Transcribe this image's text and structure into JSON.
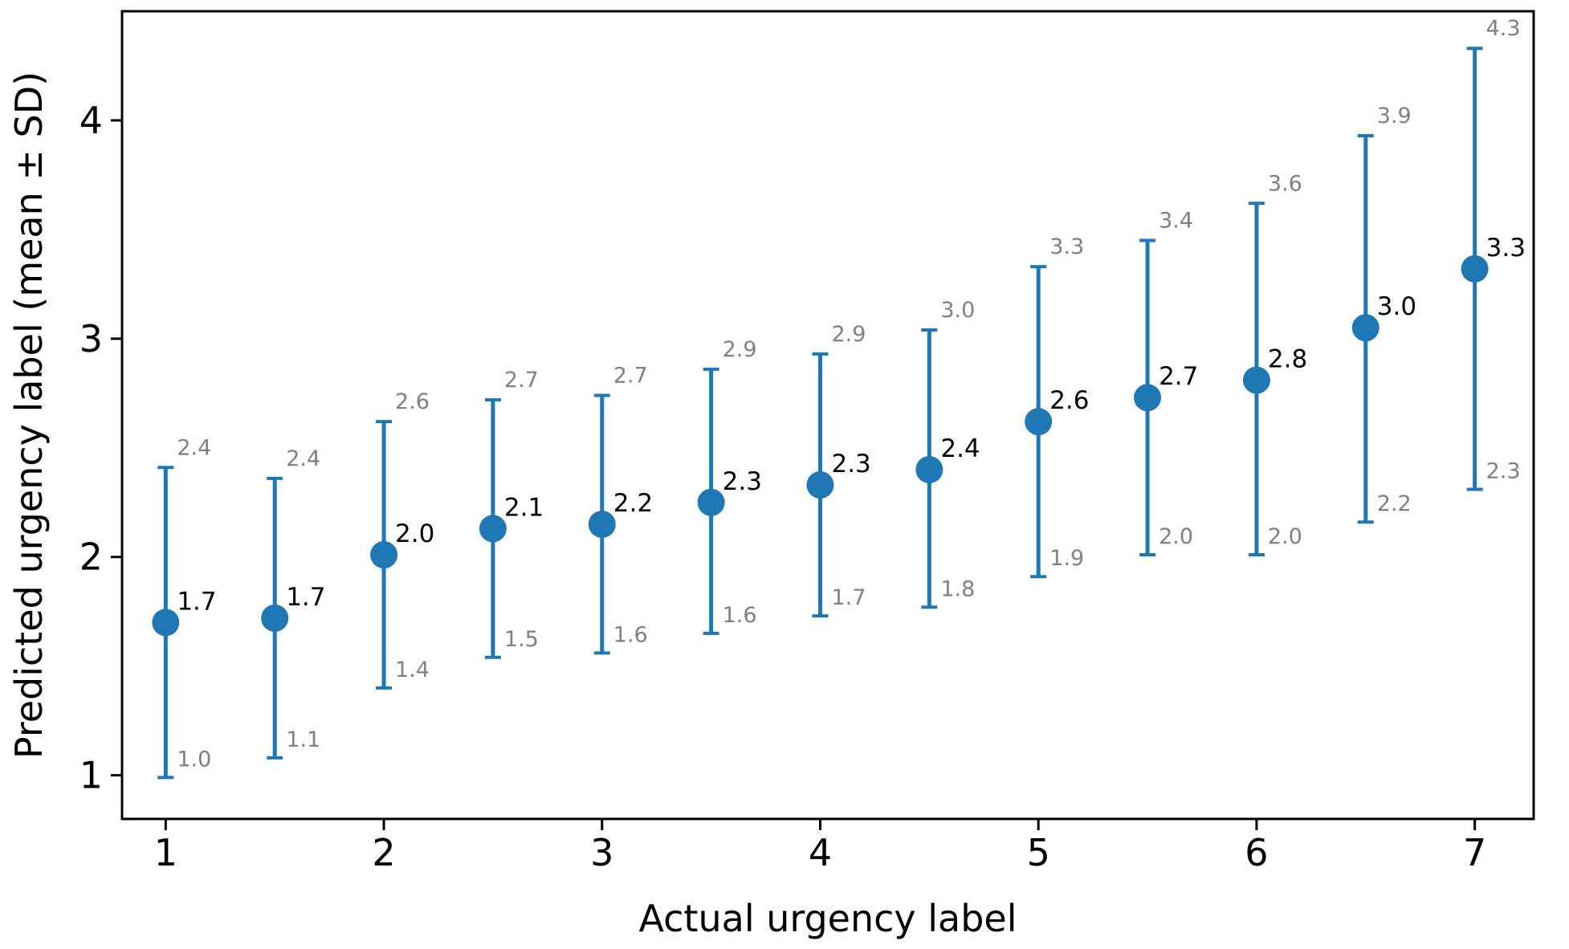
{
  "chart_data": {
    "type": "errorbar",
    "xlabel": "Actual urgency label",
    "ylabel": "Predicted urgency label (mean ± SD)",
    "xlim": [
      0.8,
      7.27
    ],
    "ylim": [
      0.8,
      4.5
    ],
    "x_ticks": [
      1,
      2,
      3,
      4,
      5,
      6,
      7
    ],
    "y_ticks": [
      1,
      2,
      3,
      4
    ],
    "grid": false,
    "legend": "none",
    "series": [
      {
        "name": "mean ± SD",
        "color": "#1f77b4",
        "points": [
          {
            "x": 1.0,
            "mean": 1.7,
            "lower": 0.99,
            "upper": 2.41,
            "mean_label": "1.7",
            "lower_label": "1.0",
            "upper_label": "2.4"
          },
          {
            "x": 1.5,
            "mean": 1.72,
            "lower": 1.08,
            "upper": 2.36,
            "mean_label": "1.7",
            "lower_label": "1.1",
            "upper_label": "2.4"
          },
          {
            "x": 2.0,
            "mean": 2.01,
            "lower": 1.4,
            "upper": 2.62,
            "mean_label": "2.0",
            "lower_label": "1.4",
            "upper_label": "2.6"
          },
          {
            "x": 2.5,
            "mean": 2.13,
            "lower": 1.54,
            "upper": 2.72,
            "mean_label": "2.1",
            "lower_label": "1.5",
            "upper_label": "2.7"
          },
          {
            "x": 3.0,
            "mean": 2.15,
            "lower": 1.56,
            "upper": 2.74,
            "mean_label": "2.2",
            "lower_label": "1.6",
            "upper_label": "2.7"
          },
          {
            "x": 3.5,
            "mean": 2.25,
            "lower": 1.65,
            "upper": 2.86,
            "mean_label": "2.3",
            "lower_label": "1.6",
            "upper_label": "2.9"
          },
          {
            "x": 4.0,
            "mean": 2.33,
            "lower": 1.73,
            "upper": 2.93,
            "mean_label": "2.3",
            "lower_label": "1.7",
            "upper_label": "2.9"
          },
          {
            "x": 4.5,
            "mean": 2.4,
            "lower": 1.77,
            "upper": 3.04,
            "mean_label": "2.4",
            "lower_label": "1.8",
            "upper_label": "3.0"
          },
          {
            "x": 5.0,
            "mean": 2.62,
            "lower": 1.91,
            "upper": 3.33,
            "mean_label": "2.6",
            "lower_label": "1.9",
            "upper_label": "3.3"
          },
          {
            "x": 5.5,
            "mean": 2.73,
            "lower": 2.01,
            "upper": 3.45,
            "mean_label": "2.7",
            "lower_label": "2.0",
            "upper_label": "3.4"
          },
          {
            "x": 6.0,
            "mean": 2.81,
            "lower": 2.01,
            "upper": 3.62,
            "mean_label": "2.8",
            "lower_label": "2.0",
            "upper_label": "3.6"
          },
          {
            "x": 6.5,
            "mean": 3.05,
            "lower": 2.16,
            "upper": 3.93,
            "mean_label": "3.0",
            "lower_label": "2.2",
            "upper_label": "3.9"
          },
          {
            "x": 7.0,
            "mean": 3.32,
            "lower": 2.31,
            "upper": 4.33,
            "mean_label": "3.3",
            "lower_label": "2.3",
            "upper_label": "4.3"
          }
        ]
      }
    ]
  }
}
